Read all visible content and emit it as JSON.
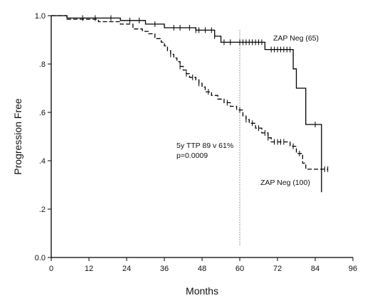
{
  "chart_data": {
    "type": "line",
    "title": "",
    "xlabel": "Months",
    "ylabel": "Progression Free",
    "xlim": [
      0,
      96
    ],
    "ylim": [
      0,
      1
    ],
    "x_ticks": [
      "0",
      "12",
      "24",
      "36",
      "48",
      "60",
      "72",
      "84",
      "96"
    ],
    "y_ticks": [
      "0.0",
      ".2",
      ".4",
      ".6",
      ".8",
      "1.0"
    ],
    "reference_line_x": 60,
    "grid": false,
    "annotations": {
      "ttp": "5y TTP 89 v 61%",
      "pvalue": "p=0.0009"
    },
    "series": [
      {
        "name": "ZAP Neg (65)",
        "style": "solid",
        "steps": [
          [
            0,
            1.0
          ],
          [
            5,
            0.99
          ],
          [
            22,
            0.98
          ],
          [
            30,
            0.965
          ],
          [
            36,
            0.95
          ],
          [
            46,
            0.94
          ],
          [
            52,
            0.915
          ],
          [
            54,
            0.89
          ],
          [
            68,
            0.86
          ],
          [
            77,
            0.78
          ],
          [
            78,
            0.7
          ],
          [
            81,
            0.55
          ],
          [
            86,
            0.27
          ]
        ],
        "end_x": 86,
        "censor_x": [
          10,
          14,
          19,
          25,
          28,
          33,
          39,
          41,
          44,
          46,
          47,
          49,
          51,
          52,
          55,
          57,
          60,
          61,
          62,
          63,
          64,
          65,
          66,
          67,
          70,
          71,
          72,
          73,
          74,
          75,
          76,
          84
        ]
      },
      {
        "name": "ZAP Neg (100)",
        "style": "dashed",
        "steps": [
          [
            0,
            1.0
          ],
          [
            5,
            0.985
          ],
          [
            15,
            0.975
          ],
          [
            22,
            0.965
          ],
          [
            26,
            0.945
          ],
          [
            29,
            0.935
          ],
          [
            31,
            0.925
          ],
          [
            33,
            0.905
          ],
          [
            35,
            0.89
          ],
          [
            36,
            0.875
          ],
          [
            37,
            0.855
          ],
          [
            38,
            0.84
          ],
          [
            39,
            0.825
          ],
          [
            40,
            0.81
          ],
          [
            41,
            0.79
          ],
          [
            42,
            0.775
          ],
          [
            43,
            0.76
          ],
          [
            44,
            0.745
          ],
          [
            46,
            0.735
          ],
          [
            47,
            0.72
          ],
          [
            48,
            0.705
          ],
          [
            49,
            0.685
          ],
          [
            51,
            0.67
          ],
          [
            53,
            0.655
          ],
          [
            55,
            0.64
          ],
          [
            57,
            0.625
          ],
          [
            59,
            0.61
          ],
          [
            61,
            0.585
          ],
          [
            62,
            0.57
          ],
          [
            63,
            0.555
          ],
          [
            65,
            0.535
          ],
          [
            67,
            0.515
          ],
          [
            69,
            0.495
          ],
          [
            70,
            0.478
          ],
          [
            76,
            0.46
          ],
          [
            78,
            0.43
          ],
          [
            80,
            0.39
          ],
          [
            81,
            0.365
          ]
        ],
        "end_x": 88,
        "censor_x": [
          38,
          41,
          43,
          45,
          47,
          50,
          56,
          60,
          62,
          64,
          66,
          68,
          69,
          71,
          72,
          73,
          74,
          77,
          79,
          87,
          88
        ]
      }
    ]
  }
}
